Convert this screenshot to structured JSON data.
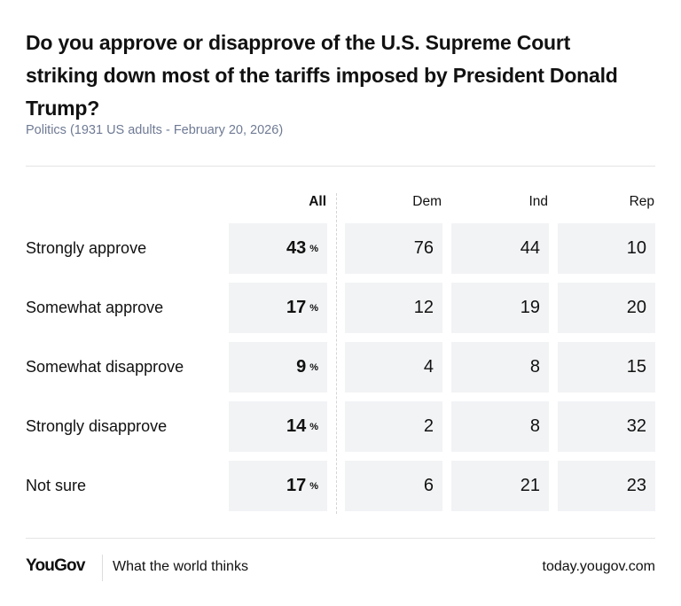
{
  "title": "Do you approve or disapprove of the U.S. Supreme Court striking down most of the tariffs imposed by President Donald Trump?",
  "subtitle": "Politics (1931 US adults - February 20, 2026)",
  "chart_data": {
    "type": "table",
    "columns": [
      "All",
      "Dem",
      "Ind",
      "Rep"
    ],
    "unit": "%",
    "rows": [
      {
        "label": "Strongly approve",
        "values": [
          43,
          76,
          44,
          10
        ]
      },
      {
        "label": "Somewhat approve",
        "values": [
          17,
          12,
          19,
          20
        ]
      },
      {
        "label": "Somewhat disapprove",
        "values": [
          9,
          4,
          8,
          15
        ]
      },
      {
        "label": "Strongly disapprove",
        "values": [
          14,
          2,
          8,
          32
        ]
      },
      {
        "label": "Not sure",
        "values": [
          17,
          6,
          21,
          23
        ]
      }
    ]
  },
  "colors": {
    "cell_bg": "#f2f3f5",
    "subtitle": "#6f7a94"
  },
  "footer": {
    "logo": "YouGov",
    "tagline": "What the world thinks",
    "url": "today.yougov.com"
  }
}
